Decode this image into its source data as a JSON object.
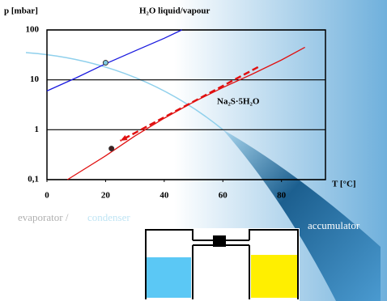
{
  "chart_data": {
    "type": "line",
    "y_axis_label": "p [mbar]",
    "x_axis_label": "T [°C]",
    "log_y": true,
    "xlim": [
      0,
      95
    ],
    "ylim": [
      0.1,
      100
    ],
    "xticks": [
      0,
      20,
      40,
      60,
      80
    ],
    "yticks": [
      {
        "value": 0.1,
        "label": "0,1"
      },
      1,
      10,
      100
    ],
    "grid": true,
    "series": [
      {
        "name": "H₂O liquid/vapour",
        "color": "#1a1adf",
        "x": [
          0,
          10,
          20,
          30,
          40,
          46
        ],
        "values": [
          6,
          11,
          21,
          38,
          68,
          100
        ]
      },
      {
        "name": "Na₂S·5H₂O",
        "color": "#e01010",
        "x": [
          7,
          20,
          30,
          40,
          50,
          60,
          70,
          80,
          88
        ],
        "values": [
          0.1,
          0.3,
          0.75,
          1.7,
          3.6,
          7,
          13,
          25,
          45
        ]
      }
    ],
    "arrow": {
      "color": "#e01010",
      "x": [
        72,
        25
      ],
      "values": [
        18,
        0.6
      ]
    },
    "points": [
      {
        "x": 20,
        "y": 22,
        "color": "#7fc8e0"
      },
      {
        "x": 22,
        "y": 0.42,
        "color": "#402020"
      }
    ],
    "annotations": {
      "left": "evaporator /",
      "middle": "condenser",
      "right": "accumulator"
    }
  }
}
